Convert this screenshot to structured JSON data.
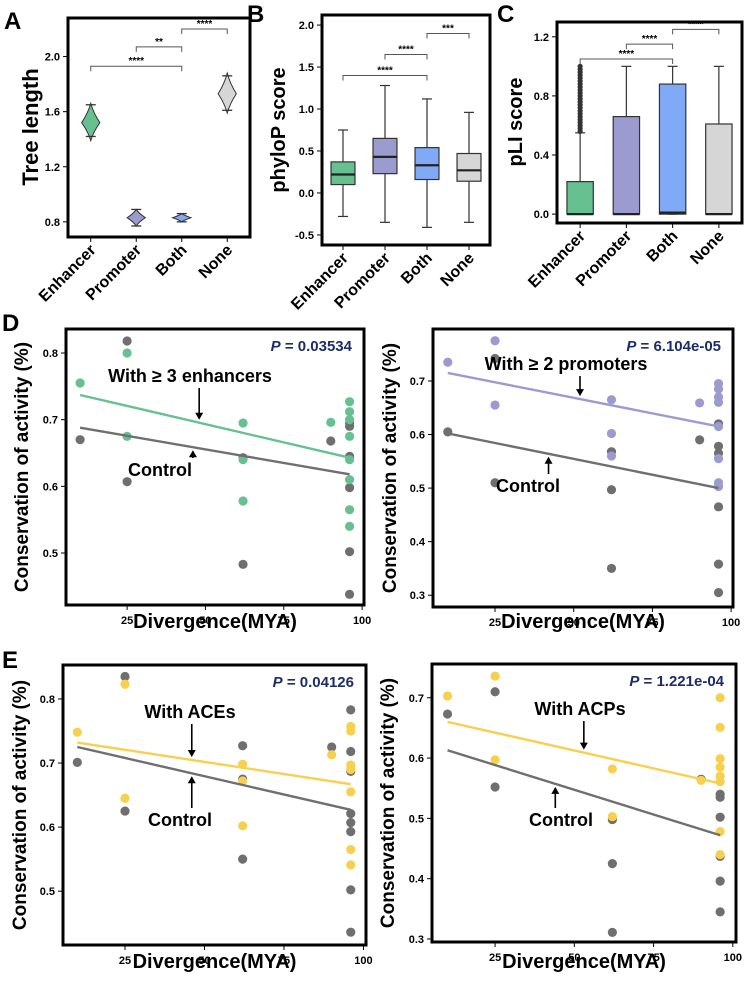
{
  "colors": {
    "enhancer": "#66c08f",
    "promoter": "#9b9bd0",
    "both": "#80aaf6",
    "none": "#d6d6d6",
    "control": "#6f6f6f",
    "ace_acp": "#f8d04f",
    "p_value_text": "#1c2d6b"
  },
  "chart_data": [
    {
      "panel": "A",
      "type": "violin",
      "ylabel": "Tree length",
      "categories": [
        "Enhancer",
        "Promoter",
        "Both",
        "None"
      ],
      "ylim": [
        0.69,
        2.28
      ],
      "yticks": [
        0.8,
        1.2,
        1.6,
        2.0
      ],
      "ytick_labels": [
        "0.8",
        "1.2",
        "1.6",
        "2.0"
      ],
      "series": [
        {
          "category": "Enhancer",
          "min": 1.39,
          "center": 1.52,
          "max": 1.66,
          "cap_low": 1.42,
          "cap_high": 1.65,
          "color_key": "enhancer"
        },
        {
          "category": "Promoter",
          "min": 0.77,
          "center": 0.83,
          "max": 0.89,
          "cap_low": 0.77,
          "cap_high": 0.89,
          "color_key": "promoter"
        },
        {
          "category": "Both",
          "min": 0.8,
          "center": 0.83,
          "max": 0.86,
          "cap_low": 0.8,
          "cap_high": 0.86,
          "color_key": "both"
        },
        {
          "category": "None",
          "min": 1.59,
          "center": 1.73,
          "max": 1.88,
          "cap_low": 1.61,
          "cap_high": 1.86,
          "color_key": "none"
        }
      ],
      "significance": [
        {
          "from": "Enhancer",
          "to": "Both",
          "y": 1.93,
          "label": "****"
        },
        {
          "from": "Promoter",
          "to": "Both",
          "y": 2.07,
          "label": "**"
        },
        {
          "from": "Both",
          "to": "None",
          "y": 2.2,
          "label": "****"
        }
      ]
    },
    {
      "panel": "B",
      "type": "box",
      "ylabel": "phyloP score",
      "categories": [
        "Enhancer",
        "Promoter",
        "Both",
        "None"
      ],
      "ylim": [
        -0.62,
        2.12
      ],
      "yticks": [
        -0.5,
        0,
        0.5,
        1.0,
        1.5,
        2.0
      ],
      "ytick_labels": [
        "-0.5",
        "0.0",
        "0.5",
        "1.0",
        "1.5",
        "2.0"
      ],
      "series": [
        {
          "category": "Enhancer",
          "whisker_low": -0.28,
          "q1": 0.1,
          "median": 0.22,
          "q3": 0.37,
          "whisker_high": 0.75,
          "color_key": "enhancer"
        },
        {
          "category": "Promoter",
          "whisker_low": -0.35,
          "q1": 0.23,
          "median": 0.43,
          "q3": 0.65,
          "whisker_high": 1.28,
          "color_key": "promoter"
        },
        {
          "category": "Both",
          "whisker_low": -0.41,
          "q1": 0.16,
          "median": 0.33,
          "q3": 0.54,
          "whisker_high": 1.12,
          "color_key": "both"
        },
        {
          "category": "None",
          "whisker_low": -0.35,
          "q1": 0.14,
          "median": 0.27,
          "q3": 0.47,
          "whisker_high": 0.96,
          "color_key": "none"
        }
      ],
      "significance": [
        {
          "from": "Enhancer",
          "to": "Both",
          "y": 1.4,
          "label": "****"
        },
        {
          "from": "Promoter",
          "to": "Both",
          "y": 1.65,
          "label": "****"
        },
        {
          "from": "Both",
          "to": "None",
          "y": 1.9,
          "label": "***"
        }
      ]
    },
    {
      "panel": "C",
      "type": "box",
      "ylabel": "pLI score",
      "categories": [
        "Enhancer",
        "Promoter",
        "Both",
        "None"
      ],
      "ylim": [
        -0.06,
        1.3
      ],
      "yticks": [
        0,
        0.4,
        0.8,
        1.2
      ],
      "ytick_labels": [
        "0.0",
        "0.4",
        "0.8",
        "1.2"
      ],
      "series": [
        {
          "category": "Enhancer",
          "whisker_low": 0,
          "q1": 0,
          "median": 0,
          "q3": 0.22,
          "whisker_high": 0.55,
          "color_key": "enhancer",
          "outliers": [
            0.56,
            0.58,
            0.6,
            0.62,
            0.64,
            0.66,
            0.68,
            0.7,
            0.72,
            0.74,
            0.76,
            0.78,
            0.8,
            0.82,
            0.84,
            0.86,
            0.88,
            0.9,
            0.92,
            0.94,
            0.96,
            0.98,
            1.0
          ]
        },
        {
          "category": "Promoter",
          "whisker_low": 0,
          "q1": 0,
          "median": 0,
          "q3": 0.66,
          "whisker_high": 1.0,
          "color_key": "promoter"
        },
        {
          "category": "Both",
          "whisker_low": 0,
          "q1": 0,
          "median": 0.01,
          "q3": 0.88,
          "whisker_high": 1.0,
          "color_key": "both"
        },
        {
          "category": "None",
          "whisker_low": 0,
          "q1": 0,
          "median": 0,
          "q3": 0.61,
          "whisker_high": 1.0,
          "color_key": "none"
        }
      ],
      "significance": [
        {
          "from": "Enhancer",
          "to": "Both",
          "y": 1.05,
          "label": "****"
        },
        {
          "from": "Promoter",
          "to": "Both",
          "y": 1.15,
          "label": "****"
        },
        {
          "from": "Both",
          "to": "None",
          "y": 1.25,
          "label": "****"
        }
      ]
    },
    {
      "panel": "D",
      "type": "scatter",
      "xlabel": "Divergence(MYA)",
      "ylabel": "Conservation of activity (%)",
      "xlim": [
        5.5,
        100.6
      ],
      "ylim": [
        0.422,
        0.836
      ],
      "xticks": [
        25,
        50,
        75,
        100
      ],
      "xtick_labels": [
        "25",
        "50",
        "75",
        "100"
      ],
      "yticks": [
        0.5,
        0.6,
        0.7,
        0.8
      ],
      "ytick_labels": [
        "0.5",
        "0.6",
        "0.7",
        "0.8"
      ],
      "p_label": "P",
      "p_value": "= 0.03534",
      "series": [
        {
          "name": "With ≥ 3 enhancers",
          "color_key": "enhancer",
          "points": [
            [
              10,
              0.755
            ],
            [
              25,
              0.8
            ],
            [
              25,
              0.675
            ],
            [
              62,
              0.695
            ],
            [
              62,
              0.64
            ],
            [
              62,
              0.578
            ],
            [
              90,
              0.696
            ],
            [
              96,
              0.727
            ],
            [
              96,
              0.712
            ],
            [
              96,
              0.7
            ],
            [
              96,
              0.675
            ],
            [
              96,
              0.64
            ],
            [
              96,
              0.61
            ],
            [
              96,
              0.565
            ],
            [
              96,
              0.54
            ]
          ],
          "fit": [
            [
              10,
              0.737
            ],
            [
              96,
              0.643
            ]
          ]
        },
        {
          "name": "Control",
          "color_key": "control",
          "points": [
            [
              10,
              0.67
            ],
            [
              25,
              0.818
            ],
            [
              25,
              0.607
            ],
            [
              62,
              0.643
            ],
            [
              62,
              0.483
            ],
            [
              90,
              0.668
            ],
            [
              96,
              0.695
            ],
            [
              96,
              0.69
            ],
            [
              96,
              0.645
            ],
            [
              96,
              0.598
            ],
            [
              96,
              0.502
            ],
            [
              96,
              0.438
            ]
          ],
          "fit": [
            [
              10,
              0.688
            ],
            [
              96,
              0.618
            ]
          ]
        }
      ]
    },
    {
      "panel": "",
      "type": "scatter",
      "xlabel": "Divergence(MYA)",
      "ylabel": "Conservation of activity (%)",
      "xlim": [
        5.3,
        100.6
      ],
      "ylim": [
        0.278,
        0.797
      ],
      "xticks": [
        25,
        50,
        75,
        100
      ],
      "xtick_labels": [
        "25",
        "50",
        "75",
        "100"
      ],
      "yticks": [
        0.3,
        0.4,
        0.5,
        0.6,
        0.7
      ],
      "ytick_labels": [
        "0.3",
        "0.4",
        "0.5",
        "0.6",
        "0.7"
      ],
      "p_label": "P",
      "p_value": "= 6.104e-05",
      "series": [
        {
          "name": "With ≥ 2 promoters",
          "color_key": "promoter",
          "points": [
            [
              10,
              0.735
            ],
            [
              25,
              0.775
            ],
            [
              25,
              0.655
            ],
            [
              62,
              0.665
            ],
            [
              62,
              0.602
            ],
            [
              62,
              0.56
            ],
            [
              90,
              0.659
            ],
            [
              96,
              0.695
            ],
            [
              96,
              0.685
            ],
            [
              96,
              0.67
            ],
            [
              96,
              0.66
            ],
            [
              96,
              0.615
            ],
            [
              96,
              0.555
            ],
            [
              96,
              0.51
            ],
            [
              96,
              0.503
            ]
          ],
          "fit": [
            [
              10,
              0.715
            ],
            [
              96,
              0.615
            ]
          ]
        },
        {
          "name": "Control",
          "color_key": "control",
          "points": [
            [
              10,
              0.605
            ],
            [
              25,
              0.742
            ],
            [
              25,
              0.51
            ],
            [
              62,
              0.568
            ],
            [
              62,
              0.497
            ],
            [
              62,
              0.35
            ],
            [
              90,
              0.59
            ],
            [
              96,
              0.62
            ],
            [
              96,
              0.578
            ],
            [
              96,
              0.565
            ],
            [
              96,
              0.465
            ],
            [
              96,
              0.358
            ],
            [
              96,
              0.305
            ]
          ],
          "fit": [
            [
              10,
              0.602
            ],
            [
              96,
              0.5
            ]
          ]
        }
      ]
    },
    {
      "panel": "E",
      "type": "scatter",
      "xlabel": "Divergence(MYA)",
      "ylabel": "Conservation of activity (%)",
      "xlim": [
        5.5,
        100.8
      ],
      "ylim": [
        0.416,
        0.853
      ],
      "xticks": [
        25,
        50,
        75,
        100
      ],
      "xtick_labels": [
        "25",
        "50",
        "75",
        "100"
      ],
      "yticks": [
        0.5,
        0.6,
        0.7,
        0.8
      ],
      "ytick_labels": [
        "0.5",
        "0.6",
        "0.7",
        "0.8"
      ],
      "p_label": "P",
      "p_value": "= 0.04126",
      "series": [
        {
          "name": "With ACEs",
          "color_key": "ace_acp",
          "points": [
            [
              10,
              0.748
            ],
            [
              25,
              0.823
            ],
            [
              25,
              0.645
            ],
            [
              62,
              0.698
            ],
            [
              62,
              0.672
            ],
            [
              62,
              0.602
            ],
            [
              90,
              0.713
            ],
            [
              96,
              0.757
            ],
            [
              96,
              0.75
            ],
            [
              96,
              0.697
            ],
            [
              96,
              0.69
            ],
            [
              96,
              0.655
            ],
            [
              96,
              0.565
            ],
            [
              96,
              0.541
            ]
          ],
          "fit": [
            [
              10,
              0.732
            ],
            [
              96,
              0.667
            ]
          ]
        },
        {
          "name": "Control",
          "color_key": "control",
          "points": [
            [
              10,
              0.701
            ],
            [
              25,
              0.835
            ],
            [
              25,
              0.625
            ],
            [
              62,
              0.727
            ],
            [
              62,
              0.675
            ],
            [
              62,
              0.55
            ],
            [
              90,
              0.725
            ],
            [
              96,
              0.783
            ],
            [
              96,
              0.718
            ],
            [
              96,
              0.687
            ],
            [
              96,
              0.621
            ],
            [
              96,
              0.607
            ],
            [
              96,
              0.593
            ],
            [
              96,
              0.502
            ],
            [
              96,
              0.436
            ]
          ],
          "fit": [
            [
              10,
              0.725
            ],
            [
              96,
              0.627
            ]
          ]
        }
      ]
    },
    {
      "panel": "",
      "type": "scatter",
      "xlabel": "Divergence(MYA)",
      "ylabel": "Conservation of activity (%)",
      "xlim": [
        5.1,
        101
      ],
      "ylim": [
        0.295,
        0.756
      ],
      "xticks": [
        25,
        50,
        75,
        100
      ],
      "xtick_labels": [
        "25",
        "50",
        "75",
        "100"
      ],
      "yticks": [
        0.3,
        0.4,
        0.5,
        0.6,
        0.7
      ],
      "ytick_labels": [
        "0.3",
        "0.4",
        "0.5",
        "0.6",
        "0.7"
      ],
      "p_label": "P",
      "p_value": "= 1.221e-04",
      "series": [
        {
          "name": "With ACPs",
          "color_key": "ace_acp",
          "points": [
            [
              10,
              0.703
            ],
            [
              25,
              0.736
            ],
            [
              25,
              0.597
            ],
            [
              62,
              0.582
            ],
            [
              62,
              0.503
            ],
            [
              90,
              0.563
            ],
            [
              96,
              0.7
            ],
            [
              96,
              0.651
            ],
            [
              96,
              0.599
            ],
            [
              96,
              0.585
            ],
            [
              96,
              0.57
            ],
            [
              96,
              0.561
            ],
            [
              96,
              0.478
            ],
            [
              96,
              0.44
            ]
          ],
          "fit": [
            [
              10,
              0.66
            ],
            [
              96,
              0.558
            ]
          ]
        },
        {
          "name": "Control",
          "color_key": "control",
          "points": [
            [
              10,
              0.673
            ],
            [
              25,
              0.71
            ],
            [
              25,
              0.552
            ],
            [
              62,
              0.498
            ],
            [
              62,
              0.425
            ],
            [
              62,
              0.311
            ],
            [
              90,
              0.565
            ],
            [
              96,
              0.54
            ],
            [
              96,
              0.535
            ],
            [
              96,
              0.502
            ],
            [
              96,
              0.437
            ],
            [
              96,
              0.396
            ],
            [
              96,
              0.345
            ]
          ],
          "fit": [
            [
              10,
              0.613
            ],
            [
              96,
              0.472
            ]
          ]
        }
      ]
    }
  ]
}
